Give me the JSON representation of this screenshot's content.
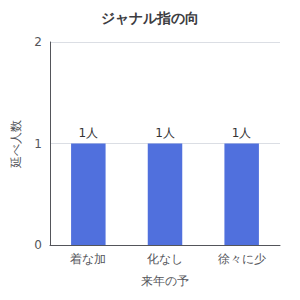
{
  "chart_data": {
    "type": "bar",
    "title": "ジャナル指の向",
    "categories": [
      "着な加",
      "化なし",
      "徐々に少"
    ],
    "values": [
      1,
      1,
      1
    ],
    "value_labels": [
      "1人",
      "1人",
      "1人"
    ],
    "data_labels": true,
    "ylabel": "延べ人数",
    "xlabel": "来年の予",
    "ylim": [
      0,
      2
    ],
    "yticks": [
      0,
      1,
      2
    ],
    "grid": true
  }
}
